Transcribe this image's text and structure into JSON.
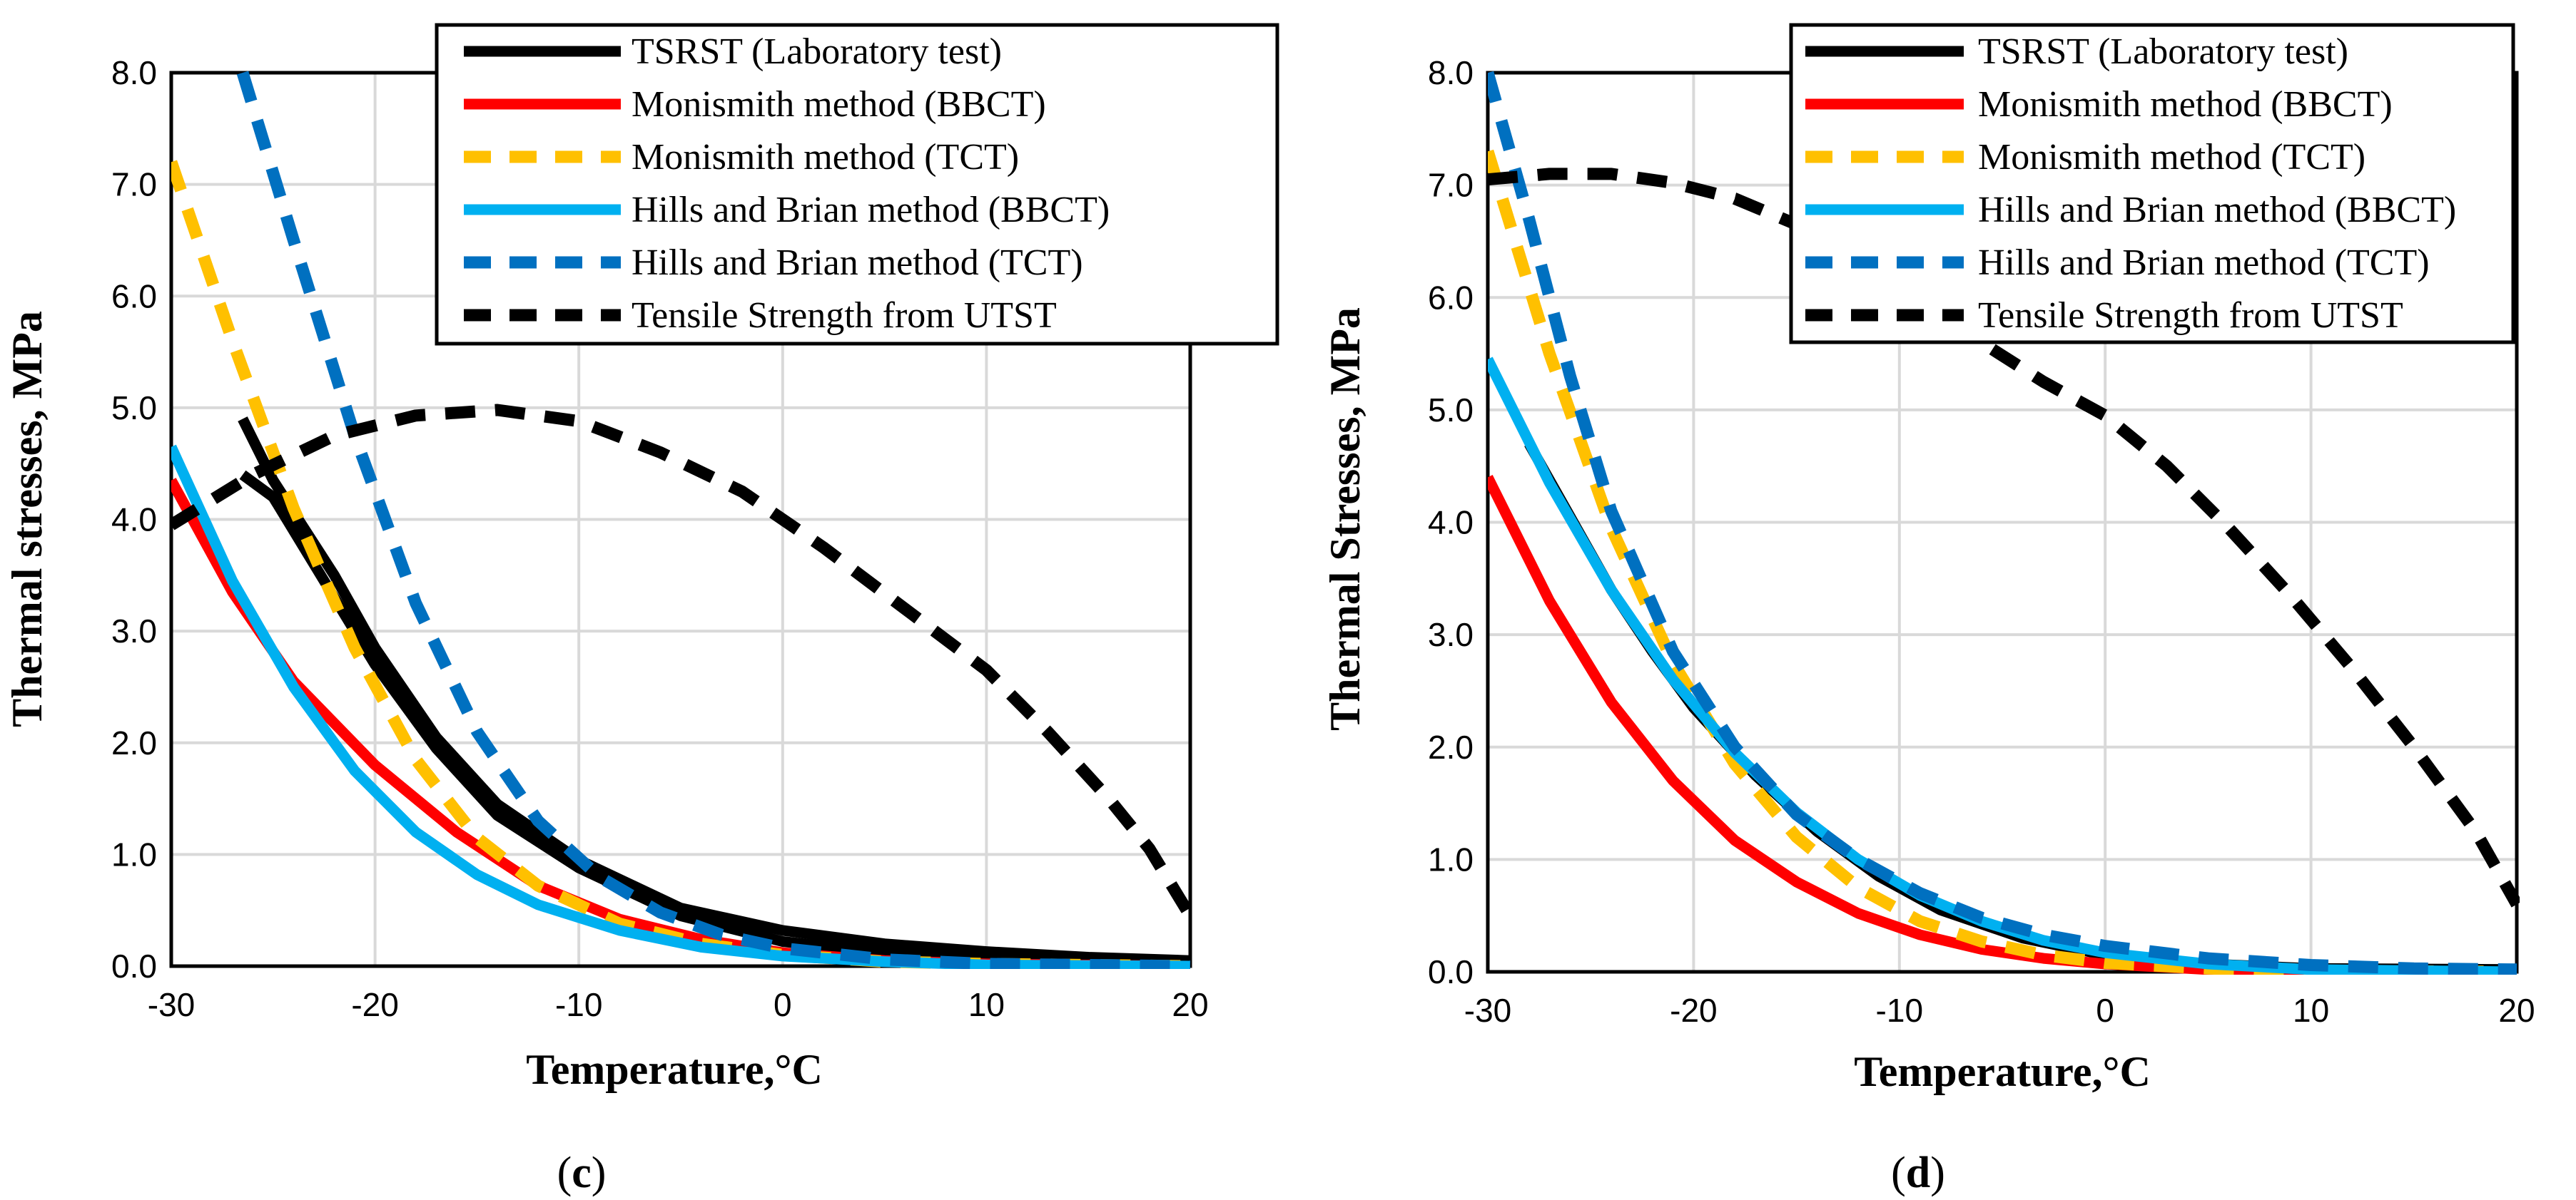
{
  "colors": {
    "tsrst": "#000000",
    "monismith_bbct": "#ff0000",
    "monismith_tct": "#ffc000",
    "hills_bbct": "#00b0f0",
    "hills_tct": "#0070c0",
    "tensile": "#000000"
  },
  "chart_data": [
    {
      "panel": "c",
      "type": "line",
      "xlabel": "Temperature,°C",
      "ylabel": "Thermal stresses, MPa",
      "xlim": [
        -30,
        20
      ],
      "ylim": [
        0,
        8
      ],
      "xticks": [
        -30,
        -20,
        -10,
        0,
        10,
        20
      ],
      "yticks": [
        0,
        1,
        2,
        3,
        4,
        5,
        6,
        7,
        8
      ],
      "grid": true,
      "legend_position": "top-right",
      "panel_label": {
        "open": "(",
        "letter": "c",
        "close": ")"
      },
      "series": [
        {
          "name": "TSRST (Laboratory test)",
          "color_key": "tsrst",
          "dashed": false,
          "points": [
            [
              -26.5,
              4.9
            ],
            [
              -25,
              4.35
            ],
            [
              -22,
              3.5
            ],
            [
              -20,
              2.85
            ],
            [
              -17,
              2.05
            ],
            [
              -14,
              1.45
            ],
            [
              -10,
              0.95
            ],
            [
              -5,
              0.52
            ],
            [
              0,
              0.32
            ],
            [
              5,
              0.2
            ],
            [
              10,
              0.13
            ],
            [
              15,
              0.08
            ],
            [
              20,
              0.05
            ]
          ]
        },
        {
          "name": "TSRST (Laboratory test)",
          "color_key": "tsrst",
          "dashed": false,
          "points": [
            [
              -26.5,
              4.4
            ],
            [
              -25,
              4.2
            ],
            [
              -22,
              3.3
            ],
            [
              -20,
              2.7
            ],
            [
              -17,
              1.95
            ],
            [
              -14,
              1.35
            ],
            [
              -10,
              0.88
            ],
            [
              -5,
              0.45
            ],
            [
              0,
              0.22
            ],
            [
              5,
              0.12
            ],
            [
              10,
              0.07
            ],
            [
              15,
              0.04
            ],
            [
              20,
              0.02
            ]
          ]
        },
        {
          "name": "Monismith method (BBCT)",
          "color_key": "monismith_bbct",
          "dashed": false,
          "points": [
            [
              -30,
              4.35
            ],
            [
              -27,
              3.35
            ],
            [
              -24,
              2.55
            ],
            [
              -20,
              1.8
            ],
            [
              -16,
              1.2
            ],
            [
              -12,
              0.72
            ],
            [
              -8,
              0.42
            ],
            [
              -4,
              0.24
            ],
            [
              0,
              0.12
            ],
            [
              5,
              0.05
            ],
            [
              10,
              0.02
            ],
            [
              20,
              0.0
            ]
          ]
        },
        {
          "name": "Monismith method (TCT)",
          "color_key": "monismith_tct",
          "dashed": true,
          "points": [
            [
              -30,
              7.2
            ],
            [
              -27,
              5.6
            ],
            [
              -24,
              4.1
            ],
            [
              -21,
              2.85
            ],
            [
              -18,
              1.85
            ],
            [
              -15,
              1.15
            ],
            [
              -12,
              0.72
            ],
            [
              -8,
              0.38
            ],
            [
              -4,
              0.2
            ],
            [
              0,
              0.1
            ],
            [
              5,
              0.04
            ],
            [
              10,
              0.02
            ],
            [
              20,
              0.0
            ]
          ]
        },
        {
          "name": "Hills and Brian method (BBCT)",
          "color_key": "hills_bbct",
          "dashed": false,
          "points": [
            [
              -30,
              4.65
            ],
            [
              -27,
              3.45
            ],
            [
              -24,
              2.5
            ],
            [
              -21,
              1.75
            ],
            [
              -18,
              1.2
            ],
            [
              -15,
              0.82
            ],
            [
              -12,
              0.55
            ],
            [
              -8,
              0.32
            ],
            [
              -4,
              0.17
            ],
            [
              0,
              0.09
            ],
            [
              5,
              0.04
            ],
            [
              10,
              0.01
            ],
            [
              20,
              0.0
            ]
          ]
        },
        {
          "name": "Hills and Brian method (TCT)",
          "color_key": "hills_tct",
          "dashed": true,
          "points": [
            [
              -26.5,
              8.0
            ],
            [
              -24,
              6.5
            ],
            [
              -21,
              4.75
            ],
            [
              -18,
              3.25
            ],
            [
              -15,
              2.1
            ],
            [
              -12,
              1.3
            ],
            [
              -9,
              0.8
            ],
            [
              -6,
              0.48
            ],
            [
              -3,
              0.28
            ],
            [
              0,
              0.16
            ],
            [
              5,
              0.06
            ],
            [
              10,
              0.02
            ],
            [
              20,
              0.0
            ]
          ]
        },
        {
          "name": "Tensile Strength from UTST",
          "color_key": "tensile",
          "dashed": true,
          "points": [
            [
              -30,
              3.95
            ],
            [
              -26,
              4.4
            ],
            [
              -22,
              4.75
            ],
            [
              -18,
              4.93
            ],
            [
              -14,
              4.98
            ],
            [
              -10,
              4.88
            ],
            [
              -6,
              4.6
            ],
            [
              -2,
              4.25
            ],
            [
              2,
              3.75
            ],
            [
              6,
              3.2
            ],
            [
              10,
              2.65
            ],
            [
              13,
              2.1
            ],
            [
              16,
              1.5
            ],
            [
              18,
              1.05
            ],
            [
              20,
              0.45
            ]
          ]
        }
      ]
    },
    {
      "panel": "d",
      "type": "line",
      "xlabel": "Temperature,°C",
      "ylabel": "Thermal Stresses, MPa",
      "xlim": [
        -30,
        20
      ],
      "ylim": [
        0,
        8
      ],
      "xticks": [
        -30,
        -20,
        -10,
        0,
        10,
        20
      ],
      "yticks": [
        0,
        1,
        2,
        3,
        4,
        5,
        6,
        7,
        8
      ],
      "grid": true,
      "legend_position": "top-right",
      "panel_label": {
        "open": "(",
        "letter": "d",
        "close": ")"
      },
      "series": [
        {
          "name": "TSRST (Laboratory test)",
          "color_key": "tsrst",
          "dashed": false,
          "points": [
            [
              -28,
              4.7
            ],
            [
              -26,
              4.05
            ],
            [
              -24,
              3.4
            ],
            [
              -22,
              2.85
            ],
            [
              -20,
              2.35
            ],
            [
              -17,
              1.75
            ],
            [
              -14,
              1.25
            ],
            [
              -11,
              0.85
            ],
            [
              -8,
              0.55
            ],
            [
              -4,
              0.3
            ],
            [
              0,
              0.15
            ],
            [
              5,
              0.07
            ],
            [
              10,
              0.03
            ],
            [
              20,
              0.02
            ]
          ]
        },
        {
          "name": "Monismith method (BBCT)",
          "color_key": "monismith_bbct",
          "dashed": false,
          "points": [
            [
              -30,
              4.4
            ],
            [
              -27,
              3.3
            ],
            [
              -24,
              2.4
            ],
            [
              -21,
              1.7
            ],
            [
              -18,
              1.17
            ],
            [
              -15,
              0.8
            ],
            [
              -12,
              0.52
            ],
            [
              -9,
              0.33
            ],
            [
              -6,
              0.2
            ],
            [
              -3,
              0.12
            ],
            [
              0,
              0.07
            ],
            [
              5,
              0.02
            ],
            [
              10,
              0.0
            ],
            [
              20,
              0.0
            ]
          ]
        },
        {
          "name": "Monismith method (TCT)",
          "color_key": "monismith_tct",
          "dashed": true,
          "points": [
            [
              -30,
              7.3
            ],
            [
              -27,
              5.5
            ],
            [
              -24,
              3.95
            ],
            [
              -21,
              2.75
            ],
            [
              -18,
              1.85
            ],
            [
              -15,
              1.2
            ],
            [
              -12,
              0.75
            ],
            [
              -9,
              0.45
            ],
            [
              -6,
              0.27
            ],
            [
              -3,
              0.15
            ],
            [
              0,
              0.08
            ],
            [
              5,
              0.03
            ],
            [
              10,
              0.01
            ],
            [
              20,
              0.0
            ]
          ]
        },
        {
          "name": "Hills and Brian method (BBCT)",
          "color_key": "hills_bbct",
          "dashed": false,
          "points": [
            [
              -30,
              5.45
            ],
            [
              -27,
              4.35
            ],
            [
              -24,
              3.4
            ],
            [
              -21,
              2.6
            ],
            [
              -18,
              1.95
            ],
            [
              -15,
              1.42
            ],
            [
              -12,
              1.0
            ],
            [
              -9,
              0.68
            ],
            [
              -6,
              0.45
            ],
            [
              -3,
              0.28
            ],
            [
              0,
              0.17
            ],
            [
              5,
              0.07
            ],
            [
              10,
              0.02
            ],
            [
              20,
              0.0
            ]
          ]
        },
        {
          "name": "Hills and Brian method (TCT)",
          "color_key": "hills_tct",
          "dashed": true,
          "points": [
            [
              -30,
              8.0
            ],
            [
              -28,
              6.7
            ],
            [
              -26,
              5.3
            ],
            [
              -24,
              4.1
            ],
            [
              -21,
              2.85
            ],
            [
              -18,
              2.0
            ],
            [
              -15,
              1.4
            ],
            [
              -12,
              1.0
            ],
            [
              -9,
              0.7
            ],
            [
              -6,
              0.48
            ],
            [
              -3,
              0.33
            ],
            [
              0,
              0.23
            ],
            [
              5,
              0.12
            ],
            [
              10,
              0.06
            ],
            [
              15,
              0.03
            ],
            [
              20,
              0.02
            ]
          ]
        },
        {
          "name": "Tensile Strength from UTST",
          "color_key": "tensile",
          "dashed": true,
          "points": [
            [
              -30,
              7.05
            ],
            [
              -27,
              7.1
            ],
            [
              -24,
              7.1
            ],
            [
              -21,
              7.02
            ],
            [
              -18,
              6.88
            ],
            [
              -15,
              6.65
            ],
            [
              -12,
              6.35
            ],
            [
              -9,
              6.0
            ],
            [
              -6,
              5.6
            ],
            [
              -3,
              5.25
            ],
            [
              0,
              4.95
            ],
            [
              3,
              4.5
            ],
            [
              6,
              3.95
            ],
            [
              9,
              3.35
            ],
            [
              12,
              2.7
            ],
            [
              15,
              2.0
            ],
            [
              18,
              1.25
            ],
            [
              20,
              0.6
            ]
          ]
        }
      ]
    }
  ]
}
